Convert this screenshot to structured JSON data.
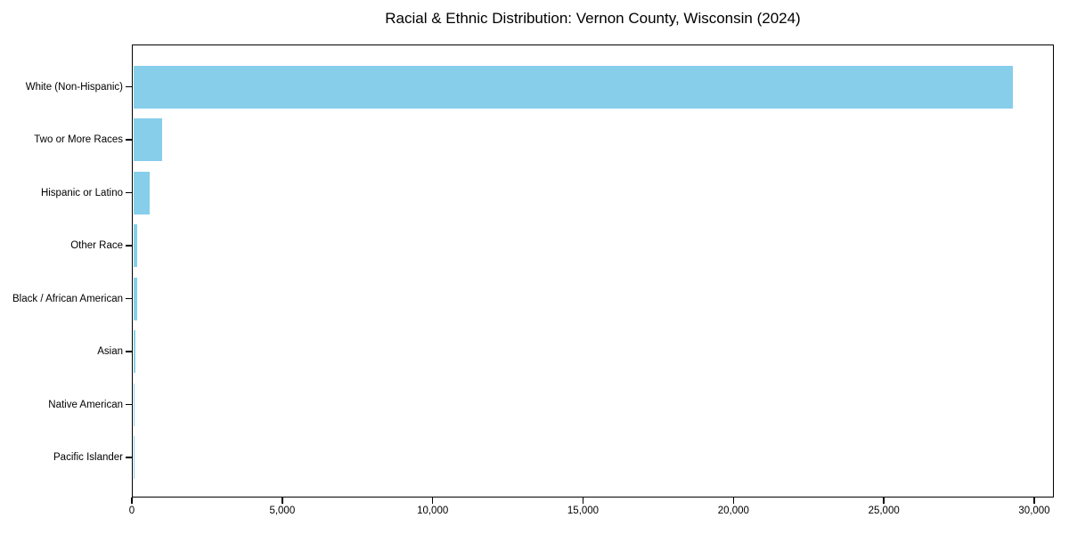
{
  "chart": {
    "title": "Racial & Ethnic Distribution: Vernon County, Wisconsin (2024)"
  },
  "chart_data": {
    "type": "bar",
    "orientation": "horizontal",
    "title": "Racial & Ethnic Distribution: Vernon County, Wisconsin (2024)",
    "categories": [
      "White (Non-Hispanic)",
      "Two or More Races",
      "Hispanic or Latino",
      "Other Race",
      "Black / African American",
      "Asian",
      "Native American",
      "Pacific Islander"
    ],
    "values": [
      29250,
      950,
      560,
      130,
      120,
      85,
      35,
      10
    ],
    "xlabel": "",
    "ylabel": "",
    "xlim": [
      0,
      30650
    ],
    "x_ticks": [
      0,
      5000,
      10000,
      15000,
      20000,
      25000,
      30000
    ],
    "x_tick_labels": [
      "0",
      "5,000",
      "10,000",
      "15,000",
      "20,000",
      "25,000",
      "30,000"
    ],
    "bar_color": "#87CEEB",
    "text_color": "#000000",
    "background_color": "#ffffff",
    "grid": false,
    "legend": null
  }
}
